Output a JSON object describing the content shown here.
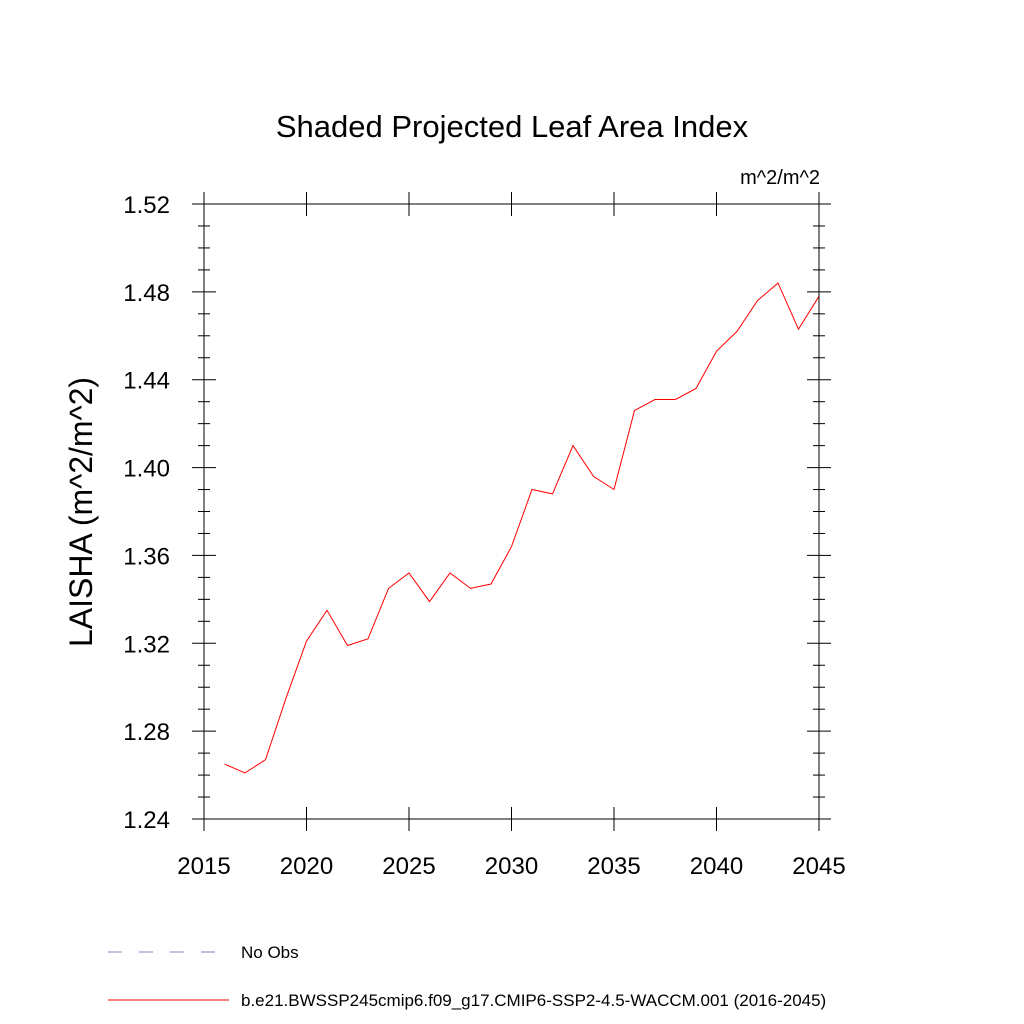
{
  "chart_data": {
    "type": "line",
    "title": "Shaded Projected Leaf Area Index",
    "units_label": "m^2/m^2",
    "ylabel": "LAISHA  (m^2/m^2)",
    "xlabel": "",
    "xlim": [
      2015,
      2045
    ],
    "ylim": [
      1.24,
      1.52
    ],
    "x_ticks": [
      "2015",
      "2020",
      "2025",
      "2030",
      "2035",
      "2040",
      "2045"
    ],
    "y_ticks": [
      "1.24",
      "1.28",
      "1.32",
      "1.36",
      "1.40",
      "1.44",
      "1.48",
      "1.52"
    ],
    "grid": false,
    "legend_position": "bottom",
    "series": [
      {
        "name": "b.e21.BWSSP245cmip6.f09_g17.CMIP6-SSP2-4.5-WACCM.001 (2016-2045)",
        "color": "#ff0000",
        "dash": "solid",
        "x": [
          2016,
          2017,
          2018,
          2019,
          2020,
          2021,
          2022,
          2023,
          2024,
          2025,
          2026,
          2027,
          2028,
          2029,
          2030,
          2031,
          2032,
          2033,
          2034,
          2035,
          2036,
          2037,
          2038,
          2039,
          2040,
          2041,
          2042,
          2043,
          2044,
          2045
        ],
        "values": [
          1.265,
          1.261,
          1.267,
          1.295,
          1.321,
          1.335,
          1.319,
          1.322,
          1.345,
          1.352,
          1.339,
          1.352,
          1.345,
          1.347,
          1.364,
          1.39,
          1.388,
          1.41,
          1.396,
          1.39,
          1.426,
          1.431,
          1.431,
          1.436,
          1.453,
          1.462,
          1.476,
          1.484,
          1.463,
          1.478
        ]
      }
    ],
    "legend": [
      {
        "label": "No Obs",
        "color": "#8a7fc0",
        "dash": "dashed"
      },
      {
        "label": "b.e21.BWSSP245cmip6.f09_g17.CMIP6-SSP2-4.5-WACCM.001 (2016-2045)",
        "color": "#ff0000",
        "dash": "solid"
      }
    ]
  }
}
